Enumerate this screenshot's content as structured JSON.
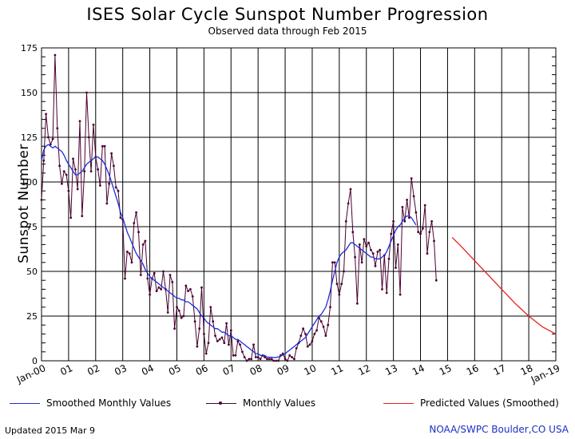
{
  "header": {
    "title": "ISES Solar Cycle Sunspot Number Progression",
    "subtitle": "Observed data through Feb 2015"
  },
  "legend": {
    "smoothed": "Smoothed Monthly Values",
    "monthly": "Monthly Values",
    "predicted": "Predicted Values (Smoothed)"
  },
  "footer": {
    "updated": "Updated 2015 Mar  9",
    "source": "NOAA/SWPC Boulder,CO USA"
  },
  "colors": {
    "smoothed": "#1a2fd6",
    "monthly": "#4a0030",
    "predicted": "#e8201c",
    "grid": "#000000"
  },
  "chart_data": {
    "type": "line",
    "title": "ISES Solar Cycle Sunspot Number Progression",
    "subtitle": "Observed data through Feb 2015",
    "xlabel": "",
    "ylabel": "Sunspot Number",
    "xlim": [
      2000.0,
      2019.0
    ],
    "ylim": [
      0,
      175
    ],
    "yticks": [
      0,
      25,
      50,
      75,
      100,
      125,
      150,
      175
    ],
    "xticks": [
      {
        "x": 2000,
        "label": "Jan-00"
      },
      {
        "x": 2001,
        "label": "01"
      },
      {
        "x": 2002,
        "label": "02"
      },
      {
        "x": 2003,
        "label": "03"
      },
      {
        "x": 2004,
        "label": "04"
      },
      {
        "x": 2005,
        "label": "05"
      },
      {
        "x": 2006,
        "label": "06"
      },
      {
        "x": 2007,
        "label": "07"
      },
      {
        "x": 2008,
        "label": "08"
      },
      {
        "x": 2009,
        "label": "09"
      },
      {
        "x": 2010,
        "label": "10"
      },
      {
        "x": 2011,
        "label": "11"
      },
      {
        "x": 2012,
        "label": "12"
      },
      {
        "x": 2013,
        "label": "13"
      },
      {
        "x": 2014,
        "label": "14"
      },
      {
        "x": 2015,
        "label": "15"
      },
      {
        "x": 2016,
        "label": "16"
      },
      {
        "x": 2017,
        "label": "17"
      },
      {
        "x": 2018,
        "label": "18"
      },
      {
        "x": 2019,
        "label": "Jan-19"
      }
    ],
    "grid": true,
    "legend_position": "bottom",
    "series": [
      {
        "name": "Monthly Values",
        "style": "line-markers",
        "x_start": "2000-01",
        "values": [
          90,
          112,
          138,
          125,
          121,
          124,
          171,
          130,
          109,
          99,
          106,
          104,
          95,
          80,
          113,
          107,
          96,
          134,
          81,
          106,
          150,
          125,
          106,
          132,
          114,
          107,
          98,
          120,
          120,
          88,
          99,
          116,
          109,
          97,
          95,
          80,
          79,
          46,
          61,
          60,
          55,
          77,
          83,
          72,
          48,
          65,
          67,
          46,
          37,
          46,
          49,
          39,
          41,
          40,
          50,
          40,
          27,
          48,
          44,
          18,
          30,
          28,
          24,
          25,
          42,
          39,
          40,
          36,
          22,
          8,
          18,
          41,
          15,
          4,
          10,
          30,
          22,
          14,
          11,
          12,
          13,
          10,
          21,
          9,
          17,
          3,
          3,
          11,
          9,
          5,
          2,
          0,
          1,
          1,
          9,
          2,
          2,
          1,
          3,
          2,
          1,
          1,
          1,
          0,
          0,
          0,
          3,
          4,
          1,
          0,
          3,
          2,
          1,
          7,
          10,
          14,
          18,
          15,
          8,
          9,
          11,
          15,
          17,
          24,
          22,
          19,
          14,
          20,
          30,
          55,
          55,
          43,
          37,
          43,
          50,
          78,
          88,
          96,
          72,
          58,
          32,
          65,
          55,
          68,
          64,
          66,
          62,
          60,
          53,
          61,
          62,
          40,
          59,
          38,
          57,
          71,
          78,
          52,
          65,
          37,
          86,
          78,
          90,
          80,
          102,
          92,
          83,
          72,
          71,
          74,
          87,
          60,
          72,
          78,
          67,
          45
        ]
      },
      {
        "name": "Smoothed Monthly Values",
        "style": "line",
        "x_start": "2000-01",
        "values": [
          112,
          118,
          120,
          121,
          120,
          119,
          120,
          119,
          118,
          117,
          115,
          112,
          110,
          108,
          106,
          104,
          104,
          105,
          106,
          108,
          110,
          111,
          112,
          113,
          114,
          114,
          113,
          112,
          110,
          107,
          104,
          100,
          96,
          92,
          88,
          83,
          80,
          76,
          72,
          69,
          66,
          63,
          60,
          58,
          56,
          54,
          51,
          49,
          47,
          46,
          45,
          44,
          43,
          42,
          41,
          40,
          39,
          38,
          37,
          36,
          35,
          35,
          34,
          34,
          33,
          33,
          32,
          31,
          30,
          29,
          27,
          25,
          24,
          22,
          21,
          20,
          19,
          18,
          18,
          17,
          16,
          16,
          15,
          14,
          14,
          13,
          12,
          12,
          11,
          10,
          9,
          8,
          7,
          6,
          5,
          4,
          4,
          3,
          3,
          3,
          2,
          2,
          2,
          1.8,
          1.9,
          2.2,
          2.6,
          3.2,
          4,
          5,
          6,
          7,
          8,
          9,
          10,
          11,
          12,
          13,
          15,
          17,
          19,
          21,
          23,
          25,
          26,
          28,
          30,
          34,
          39,
          45,
          50,
          55,
          58,
          60,
          61,
          62,
          64,
          66,
          66,
          65,
          64,
          63,
          62,
          61,
          60,
          59,
          58,
          58,
          57,
          57,
          57,
          58,
          59,
          61,
          64,
          67,
          70,
          73,
          75,
          76,
          78,
          80,
          81,
          81,
          80,
          78,
          76
        ]
      },
      {
        "name": "Predicted Values (Smoothed)",
        "style": "line",
        "points": [
          [
            2015.17,
            69
          ],
          [
            2015.5,
            64
          ],
          [
            2016.0,
            56
          ],
          [
            2016.5,
            48
          ],
          [
            2017.0,
            40
          ],
          [
            2017.5,
            32
          ],
          [
            2018.0,
            25
          ],
          [
            2018.5,
            19
          ],
          [
            2019.0,
            15
          ]
        ]
      }
    ]
  }
}
